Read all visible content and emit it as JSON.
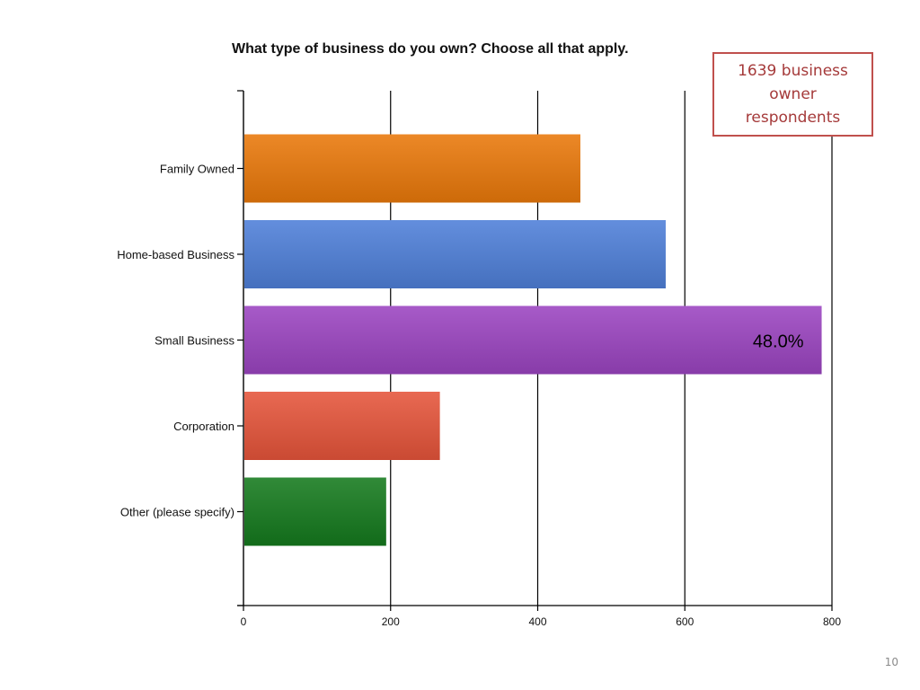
{
  "chart_data": {
    "type": "bar",
    "orientation": "horizontal",
    "title": "What type of business do you own? Choose all that apply.",
    "categories": [
      "Family Owned",
      "Home-based Business",
      "Small Business",
      "Corporation",
      "Other (please specify)"
    ],
    "values": [
      458,
      574,
      786,
      267,
      194
    ],
    "colors": [
      "#e9780a",
      "#4e7fd8",
      "#9b44c0",
      "#e5543a",
      "#157a1d"
    ],
    "xlim": [
      0,
      800
    ],
    "xticks": [
      "0",
      "200",
      "400",
      "600",
      "800"
    ],
    "grid": true,
    "annotations": [
      {
        "category": "Small Business",
        "text": "48.0%"
      }
    ]
  },
  "callout": {
    "line1": "1639 business",
    "line2": "owner",
    "line3": "respondents"
  },
  "slide_number": "10"
}
